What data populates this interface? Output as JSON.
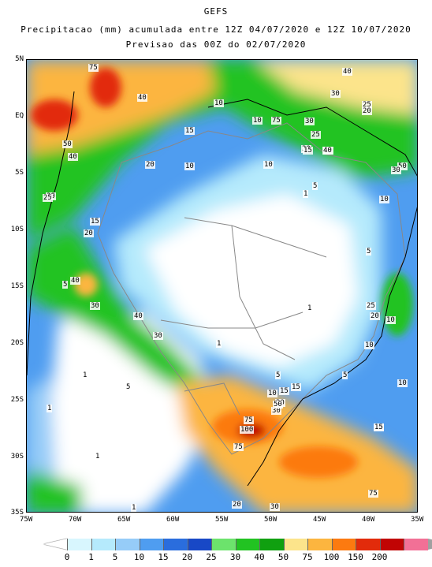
{
  "header": {
    "model": "GEFS",
    "line1": "Precipitacao (mm) acumulada entre 12Z 04/07/2020 e 12Z 10/07/2020",
    "line2": "Previsao das 00Z do 02/07/2020"
  },
  "axes": {
    "lat_labels": [
      "5N",
      "EQ",
      "5S",
      "10S",
      "15S",
      "20S",
      "25S",
      "30S",
      "35S"
    ],
    "lon_labels": [
      "75W",
      "70W",
      "65W",
      "60W",
      "55W",
      "50W",
      "45W",
      "40W",
      "35W"
    ]
  },
  "legend": {
    "values": [
      "0",
      "1",
      "5",
      "10",
      "15",
      "20",
      "25",
      "30",
      "40",
      "50",
      "75",
      "100",
      "150",
      "200"
    ],
    "colors": [
      "#ffffff",
      "#d8f6fe",
      "#b5eafc",
      "#96ccf8",
      "#4f9df0",
      "#2a6ddd",
      "#1848c6",
      "#6ce36c",
      "#22c322",
      "#10a010",
      "#fce48b",
      "#fcb53f",
      "#fc7a10",
      "#e22b0b",
      "#c10404",
      "#f27096",
      "#a0a0a0"
    ]
  },
  "map": {
    "contour_labels": [
      {
        "text": "75"
      },
      {
        "text": "40"
      },
      {
        "text": "40"
      },
      {
        "text": "30"
      },
      {
        "text": "25"
      },
      {
        "text": "20"
      },
      {
        "text": "10"
      },
      {
        "text": "10"
      },
      {
        "text": "75"
      },
      {
        "text": "30"
      },
      {
        "text": "25"
      },
      {
        "text": "40"
      },
      {
        "text": "30"
      },
      {
        "text": "15"
      },
      {
        "text": "40"
      },
      {
        "text": "15"
      },
      {
        "text": "50"
      },
      {
        "text": "40"
      },
      {
        "text": "20"
      },
      {
        "text": "10"
      },
      {
        "text": "10"
      },
      {
        "text": "5"
      },
      {
        "text": "50"
      },
      {
        "text": "30"
      },
      {
        "text": "30"
      },
      {
        "text": "25"
      },
      {
        "text": "1"
      },
      {
        "text": "10"
      },
      {
        "text": "15"
      },
      {
        "text": "20"
      },
      {
        "text": "5"
      },
      {
        "text": "10"
      },
      {
        "text": "5"
      },
      {
        "text": "40"
      },
      {
        "text": "30"
      },
      {
        "text": "25"
      },
      {
        "text": "20"
      },
      {
        "text": "10"
      },
      {
        "text": "40"
      },
      {
        "text": "30"
      },
      {
        "text": "1"
      },
      {
        "text": "1"
      },
      {
        "text": "10"
      },
      {
        "text": "5"
      },
      {
        "text": "1"
      },
      {
        "text": "5"
      },
      {
        "text": "15"
      },
      {
        "text": "5"
      },
      {
        "text": "10"
      },
      {
        "text": "15"
      },
      {
        "text": "20"
      },
      {
        "text": "30"
      },
      {
        "text": "50"
      },
      {
        "text": "1"
      },
      {
        "text": "75"
      },
      {
        "text": "100"
      },
      {
        "text": "75"
      },
      {
        "text": "1"
      },
      {
        "text": "10"
      },
      {
        "text": "15"
      },
      {
        "text": "1"
      },
      {
        "text": "20"
      },
      {
        "text": "30"
      },
      {
        "text": "75"
      }
    ]
  }
}
